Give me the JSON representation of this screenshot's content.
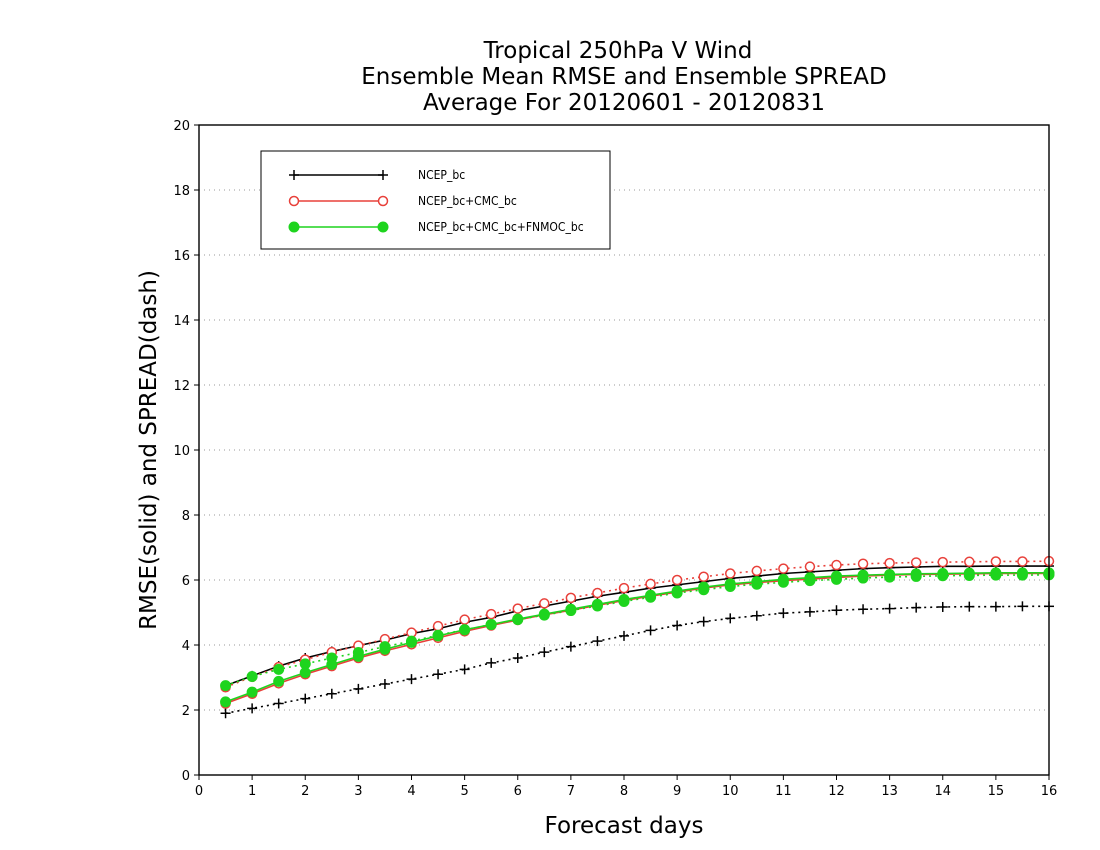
{
  "chart_data": {
    "type": "line",
    "title": [
      "Tropical 250hPa V Wind",
      "Ensemble Mean RMSE and Ensemble SPREAD",
      "Average For 20120601 - 20120831"
    ],
    "xlabel": "Forecast days",
    "ylabel": "RMSE(solid) and SPREAD(dash)",
    "xlim": [
      0,
      16
    ],
    "ylim": [
      0,
      20
    ],
    "xticks": [
      "0",
      "1",
      "2",
      "3",
      "4",
      "5",
      "6",
      "7",
      "8",
      "9",
      "10",
      "11",
      "12",
      "13",
      "14",
      "15",
      "16"
    ],
    "yticks": [
      "0",
      "2",
      "4",
      "6",
      "8",
      "10",
      "12",
      "14",
      "16",
      "18",
      "20"
    ],
    "grid": "horizontal dotted",
    "legend_position": "top-left",
    "x": [
      0.5,
      1,
      1.5,
      2,
      2.5,
      3,
      3.5,
      4,
      4.5,
      5,
      5.5,
      6,
      6.5,
      7,
      7.5,
      8,
      8.5,
      9,
      9.5,
      10,
      10.5,
      11,
      11.5,
      12,
      12.5,
      13,
      13.5,
      14,
      14.5,
      15,
      15.5,
      16
    ],
    "series": [
      {
        "name": "NCEP_bc",
        "color": "#000000",
        "marker": "plus",
        "rmse": [
          2.75,
          3.05,
          3.35,
          3.6,
          3.8,
          3.98,
          4.15,
          4.35,
          4.5,
          4.7,
          4.85,
          5.05,
          5.2,
          5.35,
          5.5,
          5.62,
          5.75,
          5.85,
          5.95,
          6.05,
          6.12,
          6.2,
          6.25,
          6.3,
          6.35,
          6.38,
          6.4,
          6.42,
          6.42,
          6.43,
          6.43,
          6.43
        ],
        "spread": [
          1.9,
          2.05,
          2.2,
          2.35,
          2.5,
          2.65,
          2.8,
          2.95,
          3.1,
          3.25,
          3.45,
          3.6,
          3.78,
          3.95,
          4.12,
          4.28,
          4.45,
          4.6,
          4.72,
          4.82,
          4.9,
          4.98,
          5.02,
          5.07,
          5.1,
          5.12,
          5.15,
          5.17,
          5.18,
          5.18,
          5.19,
          5.19
        ]
      },
      {
        "name": "NCEP_bc+CMC_bc",
        "color": "#e8403a",
        "marker": "open-circle",
        "rmse": [
          2.2,
          2.5,
          2.82,
          3.1,
          3.35,
          3.6,
          3.82,
          4.02,
          4.22,
          4.42,
          4.6,
          4.77,
          4.93,
          5.07,
          5.22,
          5.37,
          5.5,
          5.63,
          5.75,
          5.85,
          5.92,
          5.98,
          6.03,
          6.08,
          6.12,
          6.15,
          6.17,
          6.18,
          6.19,
          6.2,
          6.2,
          6.2
        ],
        "spread": [
          2.7,
          3.02,
          3.32,
          3.55,
          3.78,
          3.98,
          4.18,
          4.38,
          4.58,
          4.78,
          4.95,
          5.12,
          5.28,
          5.45,
          5.6,
          5.75,
          5.88,
          6.0,
          6.1,
          6.2,
          6.28,
          6.35,
          6.41,
          6.46,
          6.5,
          6.52,
          6.54,
          6.55,
          6.56,
          6.57,
          6.57,
          6.58
        ]
      },
      {
        "name": "NCEP_bc+CMC_bc+FNMOC_bc",
        "color": "#1ed41e",
        "marker": "filled-circle",
        "rmse": [
          2.25,
          2.55,
          2.88,
          3.15,
          3.4,
          3.65,
          3.87,
          4.08,
          4.28,
          4.47,
          4.63,
          4.8,
          4.95,
          5.1,
          5.25,
          5.4,
          5.53,
          5.66,
          5.78,
          5.88,
          5.95,
          6.02,
          6.07,
          6.12,
          6.15,
          6.17,
          6.19,
          6.2,
          6.21,
          6.22,
          6.22,
          6.22
        ],
        "spread": [
          2.75,
          3.03,
          3.25,
          3.42,
          3.6,
          3.77,
          3.95,
          4.12,
          4.3,
          4.47,
          4.63,
          4.78,
          4.92,
          5.06,
          5.2,
          5.34,
          5.47,
          5.6,
          5.7,
          5.8,
          5.87,
          5.93,
          5.98,
          6.02,
          6.06,
          6.09,
          6.11,
          6.13,
          6.14,
          6.15,
          6.15,
          6.16
        ]
      }
    ]
  }
}
